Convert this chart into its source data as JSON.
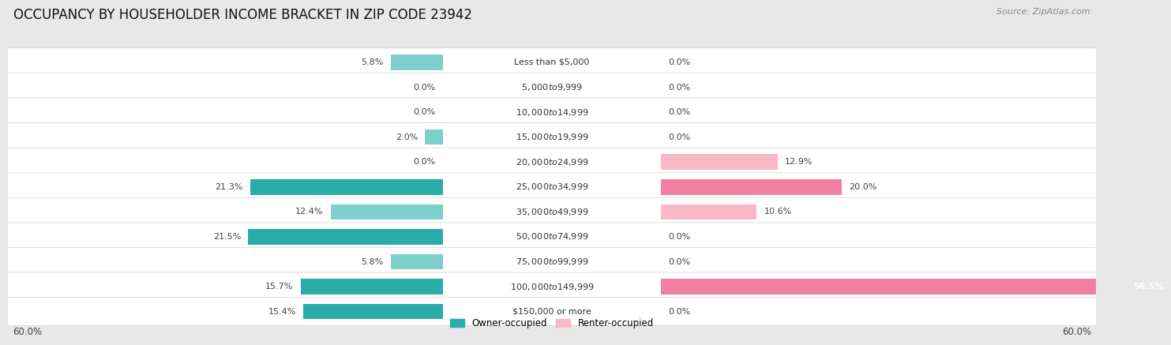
{
  "title": "OCCUPANCY BY HOUSEHOLDER INCOME BRACKET IN ZIP CODE 23942",
  "source": "Source: ZipAtlas.com",
  "categories": [
    "Less than $5,000",
    "$5,000 to $9,999",
    "$10,000 to $14,999",
    "$15,000 to $19,999",
    "$20,000 to $24,999",
    "$25,000 to $34,999",
    "$35,000 to $49,999",
    "$50,000 to $74,999",
    "$75,000 to $99,999",
    "$100,000 to $149,999",
    "$150,000 or more"
  ],
  "owner_occupied": [
    5.8,
    0.0,
    0.0,
    2.0,
    0.0,
    21.3,
    12.4,
    21.5,
    5.8,
    15.7,
    15.4
  ],
  "renter_occupied": [
    0.0,
    0.0,
    0.0,
    0.0,
    12.9,
    20.0,
    10.6,
    0.0,
    0.0,
    56.5,
    0.0
  ],
  "owner_color_dark": "#2aada8",
  "owner_color_light": "#7dcfcc",
  "renter_color_light": "#f9b8c8",
  "renter_color_dark": "#f080a0",
  "axis_limit": 60.0,
  "label_zone": 12.0,
  "background_color": "#e8e8e8",
  "row_bg_color": "#ffffff",
  "row_alt_bg_color": "#f5f5f5",
  "legend_owner": "Owner-occupied",
  "legend_renter": "Renter-occupied",
  "title_fontsize": 12,
  "source_fontsize": 8,
  "label_fontsize": 8,
  "value_fontsize": 8,
  "bar_height": 0.62,
  "threshold_dark": 15.0
}
